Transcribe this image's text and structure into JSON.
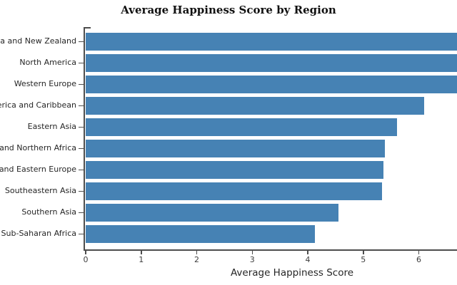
{
  "title": "Average Happiness Score by Region",
  "chart_data": {
    "type": "bar",
    "orientation": "horizontal",
    "title": "Average Happiness Score by Region",
    "xlabel": "Average Happiness Score",
    "ylabel": "",
    "categories": [
      "Australia and New Zealand",
      "North America",
      "Western Europe",
      "Latin America and Caribbean",
      "Eastern Asia",
      "Middle East and Northern Africa",
      "Central and Eastern Europe",
      "Southeastern Asia",
      "Southern Asia",
      "Sub-Saharan Africa"
    ],
    "values": [
      7.32,
      7.25,
      6.69,
      6.1,
      5.62,
      5.39,
      5.37,
      5.34,
      4.56,
      4.14
    ],
    "x_ticks": [
      0,
      1,
      2,
      3,
      4,
      5,
      6
    ],
    "xlim": [
      0,
      6.7
    ],
    "grid": false,
    "legend": false,
    "bars_clipped_at_right_edge": true,
    "labels_clipped_at_left_edge": true,
    "bar_color": "#4682b4",
    "axis_color": "#4d4d4d"
  }
}
